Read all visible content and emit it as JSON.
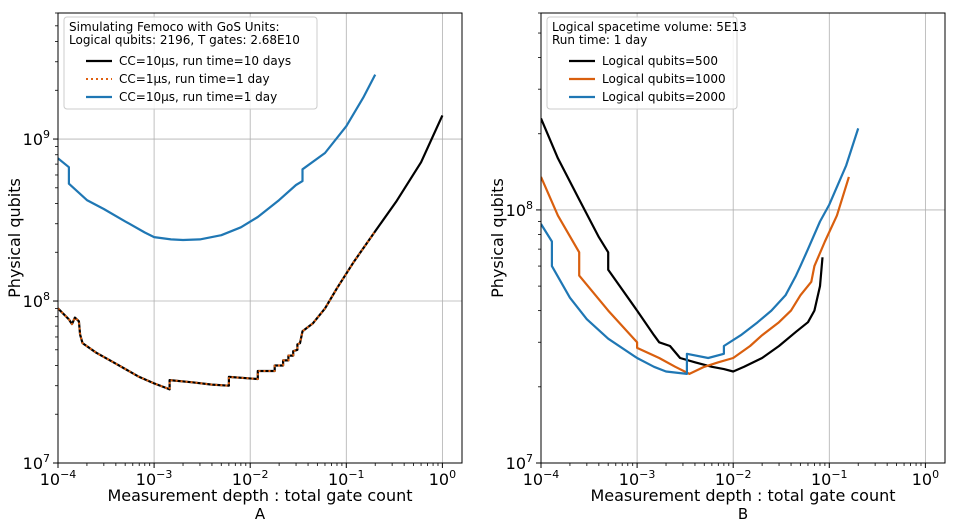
{
  "chart_data": [
    {
      "type": "line",
      "panel_label": "A",
      "xscale": "log",
      "yscale": "log",
      "xlim": [
        0.0001,
        1.6
      ],
      "ylim": [
        10000000,
        6000000000
      ],
      "xlabel": "Measurement depth : total gate count",
      "ylabel": "Physical qubits",
      "x_ticks": [
        {
          "value": 0.0001,
          "base": "10",
          "exp": "−4"
        },
        {
          "value": 0.001,
          "base": "10",
          "exp": "−3"
        },
        {
          "value": 0.01,
          "base": "10",
          "exp": "−2"
        },
        {
          "value": 0.1,
          "base": "10",
          "exp": "−1"
        },
        {
          "value": 1,
          "base": "10",
          "exp": "0"
        }
      ],
      "y_ticks": [
        {
          "value": 10000000,
          "base": "10",
          "exp": "7"
        },
        {
          "value": 100000000,
          "base": "10",
          "exp": "8"
        },
        {
          "value": 1000000000,
          "base": "10",
          "exp": "9"
        }
      ],
      "grid": true,
      "legend_position": "top-left",
      "legend_title": [
        "Simulating Femoco with GoS Units:",
        "Logical qubits: 2196, T gates: 2.68E10"
      ],
      "series": [
        {
          "name": "CC=10μs, run time=10 days",
          "color": "#000000",
          "dash": "solid",
          "points": [
            [
              0.0001,
              90000000
            ],
            [
              0.00013,
              77000000
            ],
            [
              0.00014,
              72000000
            ],
            [
              0.00015,
              79000000
            ],
            [
              0.000165,
              75000000
            ],
            [
              0.00017,
              62000000
            ],
            [
              0.00018,
              55000000
            ],
            [
              0.00025,
              48000000
            ],
            [
              0.0004,
              41000000
            ],
            [
              0.0007,
              34000000
            ],
            [
              0.001,
              31000000
            ],
            [
              0.00135,
              29000000
            ],
            [
              0.00145,
              28500000
            ],
            [
              0.00145,
              32500000
            ],
            [
              0.0025,
              31500000
            ],
            [
              0.004,
              30500000
            ],
            [
              0.006,
              30000000
            ],
            [
              0.006,
              34000000
            ],
            [
              0.012,
              33000000
            ],
            [
              0.012,
              37000000
            ],
            [
              0.018,
              37000000
            ],
            [
              0.018,
              40000000
            ],
            [
              0.022,
              40000000
            ],
            [
              0.022,
              43000000
            ],
            [
              0.025,
              43000000
            ],
            [
              0.025,
              46000000
            ],
            [
              0.028,
              46000000
            ],
            [
              0.028,
              49000000
            ],
            [
              0.031,
              50000000
            ],
            [
              0.031,
              54000000
            ],
            [
              0.033,
              55000000
            ],
            [
              0.035,
              65000000
            ],
            [
              0.045,
              73000000
            ],
            [
              0.06,
              90000000
            ],
            [
              0.08,
              120000000
            ],
            [
              0.12,
              175000000
            ],
            [
              0.2,
              270000000
            ],
            [
              0.33,
              410000000
            ],
            [
              0.6,
              720000000
            ],
            [
              1.0,
              1400000000
            ]
          ]
        },
        {
          "name": "CC=1μs, run time=1 day",
          "color": "#e06010",
          "dash": "dotted",
          "points": [
            [
              0.0001,
              90000000
            ],
            [
              0.00013,
              77000000
            ],
            [
              0.00014,
              72000000
            ],
            [
              0.00015,
              79000000
            ],
            [
              0.000165,
              75000000
            ],
            [
              0.00017,
              62000000
            ],
            [
              0.00018,
              55000000
            ],
            [
              0.00025,
              48000000
            ],
            [
              0.0004,
              41000000
            ],
            [
              0.0007,
              34000000
            ],
            [
              0.001,
              31000000
            ],
            [
              0.00135,
              29000000
            ],
            [
              0.00145,
              28500000
            ],
            [
              0.00145,
              32500000
            ],
            [
              0.0025,
              31500000
            ],
            [
              0.004,
              30500000
            ],
            [
              0.006,
              30000000
            ],
            [
              0.006,
              34000000
            ],
            [
              0.012,
              33000000
            ],
            [
              0.012,
              37000000
            ],
            [
              0.018,
              37000000
            ],
            [
              0.018,
              40000000
            ],
            [
              0.022,
              40000000
            ],
            [
              0.022,
              43000000
            ],
            [
              0.025,
              43000000
            ],
            [
              0.025,
              46000000
            ],
            [
              0.028,
              46000000
            ],
            [
              0.028,
              49000000
            ],
            [
              0.031,
              50000000
            ],
            [
              0.031,
              54000000
            ],
            [
              0.033,
              55000000
            ],
            [
              0.035,
              65000000
            ],
            [
              0.045,
              73000000
            ],
            [
              0.06,
              90000000
            ],
            [
              0.08,
              120000000
            ],
            [
              0.12,
              175000000
            ],
            [
              0.2,
              270000000
            ]
          ]
        },
        {
          "name": "CC=10μs, run time=1 day",
          "color": "#1f77b4",
          "dash": "solid",
          "points": [
            [
              0.0001,
              760000000
            ],
            [
              0.00013,
              670000000
            ],
            [
              0.00013,
              530000000
            ],
            [
              0.0002,
              420000000
            ],
            [
              0.0003,
              370000000
            ],
            [
              0.0005,
              310000000
            ],
            [
              0.0008,
              265000000
            ],
            [
              0.001,
              248000000
            ],
            [
              0.0015,
              240000000
            ],
            [
              0.002,
              238000000
            ],
            [
              0.003,
              240000000
            ],
            [
              0.005,
              255000000
            ],
            [
              0.008,
              285000000
            ],
            [
              0.012,
              330000000
            ],
            [
              0.02,
              420000000
            ],
            [
              0.03,
              520000000
            ],
            [
              0.035,
              550000000
            ],
            [
              0.035,
              650000000
            ],
            [
              0.06,
              820000000
            ],
            [
              0.1,
              1200000000
            ],
            [
              0.15,
              1800000000
            ],
            [
              0.2,
              2500000000
            ]
          ]
        }
      ]
    },
    {
      "type": "line",
      "panel_label": "B",
      "xscale": "log",
      "yscale": "log",
      "xlim": [
        0.0001,
        1.6
      ],
      "ylim": [
        10000000,
        600000000
      ],
      "xlabel": "Measurement depth : total gate count",
      "ylabel": "Physical qubits",
      "x_ticks": [
        {
          "value": 0.0001,
          "base": "10",
          "exp": "−4"
        },
        {
          "value": 0.001,
          "base": "10",
          "exp": "−3"
        },
        {
          "value": 0.01,
          "base": "10",
          "exp": "−2"
        },
        {
          "value": 0.1,
          "base": "10",
          "exp": "−1"
        },
        {
          "value": 1,
          "base": "10",
          "exp": "0"
        }
      ],
      "y_ticks": [
        {
          "value": 10000000,
          "base": "10",
          "exp": "7"
        },
        {
          "value": 100000000,
          "base": "10",
          "exp": "8"
        }
      ],
      "grid": true,
      "legend_position": "top-left",
      "legend_title": [
        "Logical spacetime volume: 5E13",
        "Run time: 1 day"
      ],
      "series": [
        {
          "name": "Logical qubits=500",
          "color": "#000000",
          "dash": "solid",
          "points": [
            [
              0.0001,
              230000000
            ],
            [
              0.00015,
              160000000
            ],
            [
              0.00025,
              110000000
            ],
            [
              0.0004,
              78000000
            ],
            [
              0.0005,
              68000000
            ],
            [
              0.0005,
              58000000
            ],
            [
              0.001,
              40000000
            ],
            [
              0.0015,
              32000000
            ],
            [
              0.0017,
              30000000
            ],
            [
              0.0022,
              29000000
            ],
            [
              0.0028,
              26000000
            ],
            [
              0.004,
              25000000
            ],
            [
              0.006,
              24000000
            ],
            [
              0.008,
              23500000
            ],
            [
              0.01,
              23000000
            ],
            [
              0.013,
              24000000
            ],
            [
              0.02,
              26000000
            ],
            [
              0.03,
              29000000
            ],
            [
              0.045,
              33000000
            ],
            [
              0.06,
              36000000
            ],
            [
              0.07,
              40000000
            ],
            [
              0.08,
              50000000
            ],
            [
              0.085,
              65000000
            ]
          ]
        },
        {
          "name": "Logical qubits=1000",
          "color": "#d95f0e",
          "dash": "solid",
          "points": [
            [
              0.0001,
              135000000
            ],
            [
              0.00015,
              95000000
            ],
            [
              0.00025,
              68000000
            ],
            [
              0.00025,
              55000000
            ],
            [
              0.0005,
              40000000
            ],
            [
              0.001,
              30000000
            ],
            [
              0.001,
              28500000
            ],
            [
              0.0017,
              26000000
            ],
            [
              0.0025,
              24000000
            ],
            [
              0.0035,
              22500000
            ],
            [
              0.005,
              24000000
            ],
            [
              0.007,
              25000000
            ],
            [
              0.01,
              26000000
            ],
            [
              0.015,
              29000000
            ],
            [
              0.02,
              32000000
            ],
            [
              0.03,
              36000000
            ],
            [
              0.04,
              40000000
            ],
            [
              0.05,
              46000000
            ],
            [
              0.065,
              52000000
            ],
            [
              0.07,
              60000000
            ],
            [
              0.09,
              75000000
            ],
            [
              0.12,
              95000000
            ],
            [
              0.16,
              135000000
            ]
          ]
        },
        {
          "name": "Logical qubits=2000",
          "color": "#1f77b4",
          "dash": "solid",
          "points": [
            [
              0.0001,
              88000000
            ],
            [
              0.00013,
              75000000
            ],
            [
              0.00013,
              60000000
            ],
            [
              0.0002,
              45000000
            ],
            [
              0.0003,
              37000000
            ],
            [
              0.0005,
              31000000
            ],
            [
              0.001,
              26000000
            ],
            [
              0.0015,
              24000000
            ],
            [
              0.002,
              23000000
            ],
            [
              0.0033,
              22500000
            ],
            [
              0.0033,
              27000000
            ],
            [
              0.0055,
              26000000
            ],
            [
              0.008,
              27000000
            ],
            [
              0.008,
              29000000
            ],
            [
              0.012,
              32000000
            ],
            [
              0.018,
              36000000
            ],
            [
              0.025,
              40000000
            ],
            [
              0.035,
              46000000
            ],
            [
              0.045,
              55000000
            ],
            [
              0.05,
              60000000
            ],
            [
              0.06,
              70000000
            ],
            [
              0.08,
              90000000
            ],
            [
              0.1,
              105000000
            ],
            [
              0.15,
              150000000
            ],
            [
              0.2,
              210000000
            ]
          ]
        }
      ]
    }
  ]
}
